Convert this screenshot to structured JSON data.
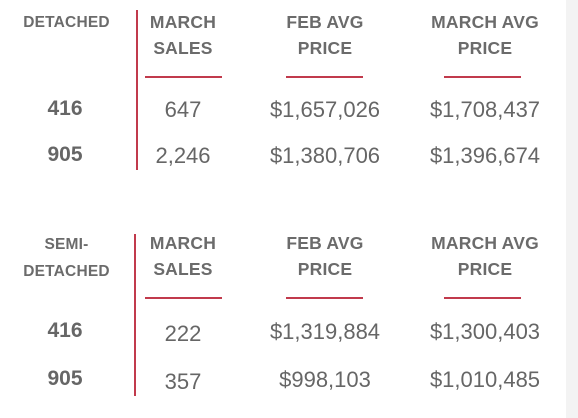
{
  "tables": [
    {
      "type_label": "DETACHED",
      "type_label_lines": [
        "DETACHED"
      ],
      "columns": [
        [
          "MARCH",
          "SALES"
        ],
        [
          "FEB AVG",
          "PRICE"
        ],
        [
          "MARCH AVG",
          "PRICE"
        ]
      ],
      "rows": [
        {
          "area": "416",
          "march_sales": "647",
          "feb_avg_price": "$1,657,026",
          "march_avg_price": "$1,708,437"
        },
        {
          "area": "905",
          "march_sales": "2,246",
          "feb_avg_price": "$1,380,706",
          "march_avg_price": "$1,396,674"
        }
      ]
    },
    {
      "type_label": "SEMI-DETACHED",
      "type_label_lines": [
        "SEMI-",
        "DETACHED"
      ],
      "columns": [
        [
          "MARCH",
          "SALES"
        ],
        [
          "FEB AVG",
          "PRICE"
        ],
        [
          "MARCH AVG",
          "PRICE"
        ]
      ],
      "rows": [
        {
          "area": "416",
          "march_sales": "222",
          "feb_avg_price": "$1,319,884",
          "march_avg_price": "$1,300,403"
        },
        {
          "area": "905",
          "march_sales": "357",
          "feb_avg_price": "$998,103",
          "march_avg_price": "$1,010,485"
        }
      ]
    }
  ],
  "colors": {
    "accent": "#c13a4c",
    "text": "#6b6b6b",
    "background": "#ffffff"
  }
}
